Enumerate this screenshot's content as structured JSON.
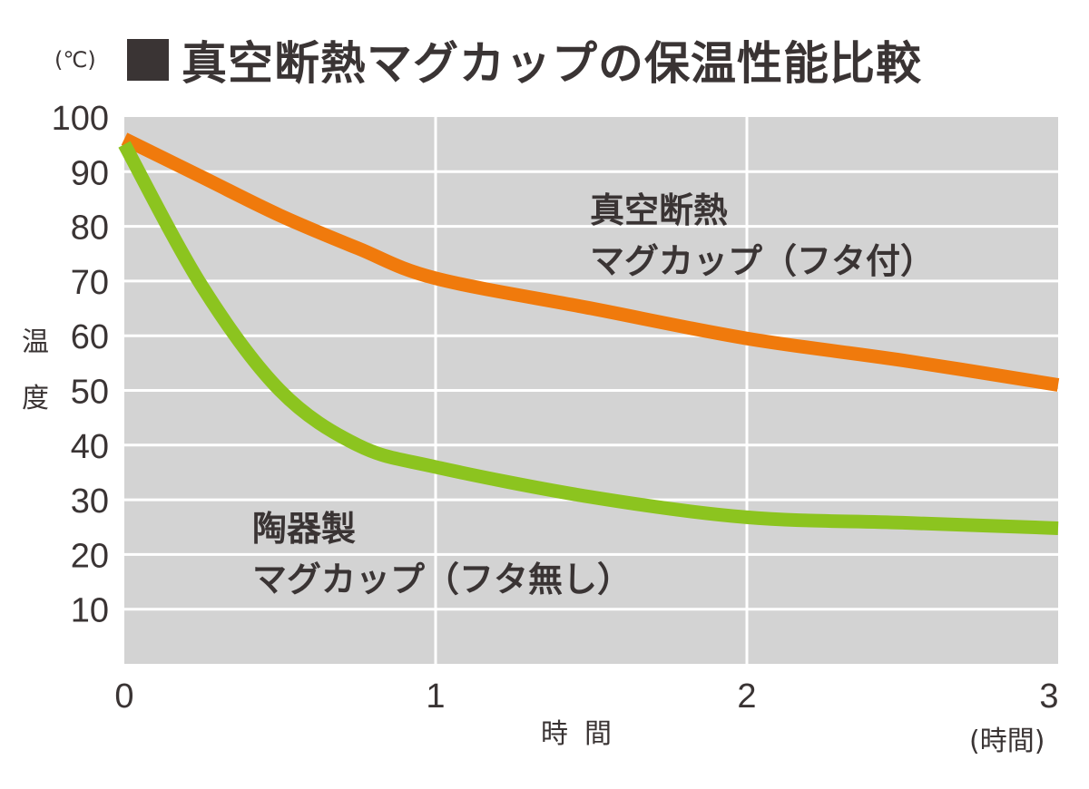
{
  "title": "真空断熱マグカップの保温性能比較",
  "unit_label": "(℃)",
  "y_label_chars": [
    "温",
    "度"
  ],
  "x_label": "時間",
  "x_unit": "(時間)",
  "colors": {
    "vacuum": "#f07a0c",
    "ceramic": "#8cc41f",
    "plot_bg": "#d3d3d3",
    "grid": "#ffffff",
    "text": "#3a3434"
  },
  "annotations": {
    "vacuum": {
      "line1": "真空断熱",
      "line2": "マグカップ（フタ付）"
    },
    "ceramic": {
      "line1": "陶器製",
      "line2": "マグカップ（フタ無し）"
    }
  },
  "chart_data": {
    "type": "line",
    "title": "真空断熱マグカップの保温性能比較",
    "xlabel": "時間",
    "ylabel": "温度",
    "x_unit": "時間",
    "y_unit": "℃",
    "xlim": [
      0,
      3
    ],
    "ylim": [
      0,
      100
    ],
    "x_ticks": [
      "0",
      "1",
      "2",
      "3"
    ],
    "y_ticks": [
      "10",
      "20",
      "30",
      "40",
      "50",
      "60",
      "70",
      "80",
      "90",
      "100"
    ],
    "grid": true,
    "series": [
      {
        "name": "真空断熱マグカップ（フタ付）",
        "color": "#f07a0c",
        "x": [
          0,
          0.25,
          0.5,
          0.75,
          1,
          1.5,
          2,
          2.5,
          3
        ],
        "y": [
          96,
          89,
          82,
          76,
          70.5,
          65,
          59.5,
          55.5,
          51
        ]
      },
      {
        "name": "陶器製マグカップ（フタ無し）",
        "color": "#8cc41f",
        "x": [
          0,
          0.25,
          0.5,
          0.75,
          1,
          1.5,
          2,
          2.5,
          3
        ],
        "y": [
          95,
          69,
          50,
          40,
          36,
          30.5,
          26.8,
          25.8,
          24.8
        ]
      }
    ]
  }
}
